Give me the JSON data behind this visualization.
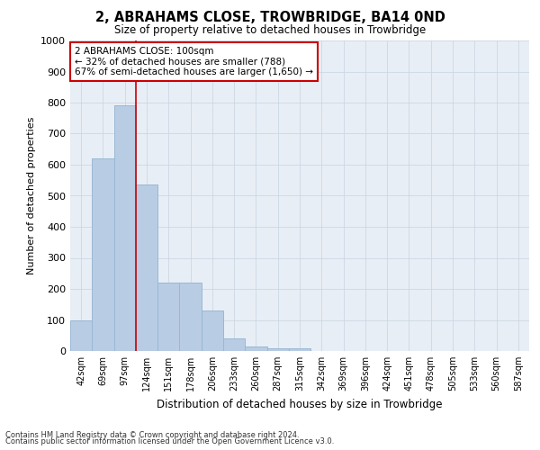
{
  "title": "2, ABRAHAMS CLOSE, TROWBRIDGE, BA14 0ND",
  "subtitle": "Size of property relative to detached houses in Trowbridge",
  "xlabel": "Distribution of detached houses by size in Trowbridge",
  "ylabel": "Number of detached properties",
  "categories": [
    "42sqm",
    "69sqm",
    "97sqm",
    "124sqm",
    "151sqm",
    "178sqm",
    "206sqm",
    "233sqm",
    "260sqm",
    "287sqm",
    "315sqm",
    "342sqm",
    "369sqm",
    "396sqm",
    "424sqm",
    "451sqm",
    "478sqm",
    "505sqm",
    "533sqm",
    "560sqm",
    "587sqm"
  ],
  "values": [
    100,
    620,
    790,
    535,
    220,
    220,
    130,
    40,
    15,
    10,
    10,
    0,
    0,
    0,
    0,
    0,
    0,
    0,
    0,
    0,
    0
  ],
  "bar_color": "#b8cce4",
  "bar_edge_color": "#9ab8d4",
  "grid_color": "#c8d4e0",
  "vline_color": "#cc0000",
  "vline_index": 2,
  "annotation_text": "2 ABRAHAMS CLOSE: 100sqm\n← 32% of detached houses are smaller (788)\n67% of semi-detached houses are larger (1,650) →",
  "annotation_box_color": "#ffffff",
  "annotation_box_edge": "#cc0000",
  "ylim": [
    0,
    1000
  ],
  "yticks": [
    0,
    100,
    200,
    300,
    400,
    500,
    600,
    700,
    800,
    900,
    1000
  ],
  "footnote1": "Contains HM Land Registry data © Crown copyright and database right 2024.",
  "footnote2": "Contains public sector information licensed under the Open Government Licence v3.0.",
  "bg_color": "#ffffff",
  "plot_bg_color": "#e8eef5"
}
